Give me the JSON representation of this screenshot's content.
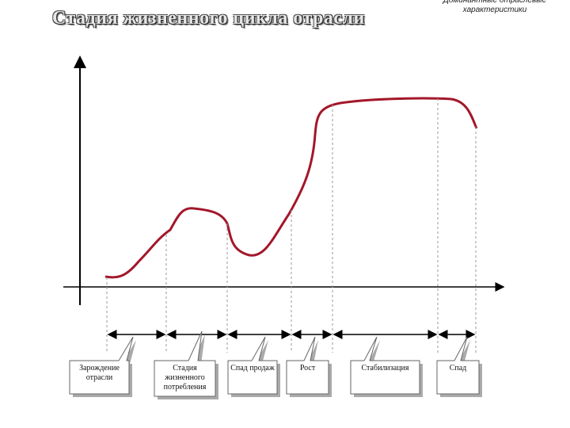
{
  "header": {
    "title": "Стадия жизненного цикла отрасли",
    "note": "Доминантные отраслевые характеристики"
  },
  "stages": [
    {
      "label": "Зарождение отрасли"
    },
    {
      "label": "Стадия жизненного потребления"
    },
    {
      "label": "Спад продаж"
    },
    {
      "label": "Рост"
    },
    {
      "label": "Стабилизация"
    },
    {
      "label": "Спад"
    }
  ]
}
